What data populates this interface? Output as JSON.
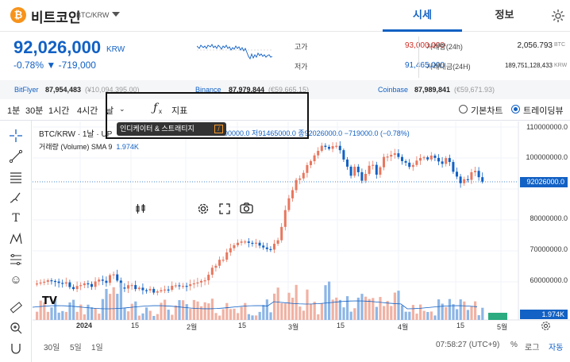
{
  "header": {
    "coin_name": "비트코인",
    "pair": "BTC/KRW",
    "tab_quote": "시세",
    "tab_info": "정보"
  },
  "price": {
    "current": "92,026,000",
    "unit": "KRW",
    "change_rate": "-0.78%",
    "change_amount": "▼ -719,000"
  },
  "stats": {
    "high_label": "고가",
    "high_value": "93,000,000",
    "low_label": "저가",
    "low_value": "91,465,000",
    "volume_label": "거래량(24h)",
    "volume_value": "2,056.793",
    "volume_unit": "BTC",
    "amount_label": "거래대금(24H)",
    "amount_value": "189,751,128,433",
    "amount_unit": "KRW"
  },
  "exchanges": [
    {
      "name": "BitFlyer",
      "value": "87,954,483",
      "sub": "(¥10,094,395.00)"
    },
    {
      "name": "Binance",
      "value": "87,979,844",
      "sub": "(€59,665.15)"
    },
    {
      "name": "Coinbase",
      "value": "87,989,841",
      "sub": "(€59,671.93)"
    }
  ],
  "toolbar": {
    "intervals": [
      "1분",
      "30분",
      "1시간",
      "4시간"
    ],
    "interval_partial": "날",
    "indicator_label": "지표",
    "basic_chart": "기본차트",
    "tradingview": "트레이딩뷰"
  },
  "tooltip": {
    "text": "인디케이터 & 스트래티지",
    "key": "/"
  },
  "chart_legend": {
    "title": "BTC/KRW · 1날 · UP",
    "volume": "거래량 (Volume)",
    "sma": "SMA 9",
    "sma_value": "1.974K"
  },
  "ohlc": {
    "text": "00000.0 저91465000.0 종92026000.0 −719000.0 (−0.78%)"
  },
  "colors": {
    "up": "#e8775f",
    "down": "#1261c4",
    "accent": "#1261c4",
    "high_price": "#d22f27"
  },
  "chart_data": {
    "type": "candlestick",
    "y_ticks": [
      "110000000.0",
      "100000000.0",
      "90000000.0",
      "80000000.0",
      "70000000.0",
      "60000000.0"
    ],
    "current_price_tag": "92026000.0",
    "volume_tag": "1.974K",
    "x_ticks": [
      "2024",
      "15",
      "2월",
      "15",
      "3월",
      "15",
      "4월",
      "15",
      "5월"
    ],
    "ylim": [
      56000000,
      110000000
    ]
  },
  "bottom": {
    "ranges": [
      "30일",
      "5일",
      "1일"
    ],
    "time": "07:58:27 (UTC+9)",
    "pct": "%",
    "log": "로그",
    "auto": "자동"
  }
}
